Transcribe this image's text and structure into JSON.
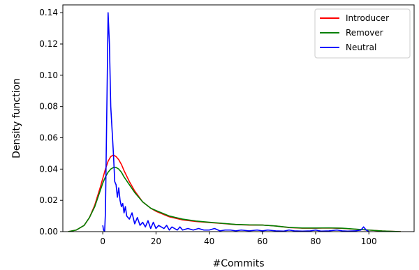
{
  "chart_data": {
    "type": "line",
    "title": "",
    "xlabel": "#Commits",
    "ylabel": "Density function",
    "xlim": [
      -15,
      117
    ],
    "ylim": [
      0,
      0.145
    ],
    "grid": false,
    "legend_position": "top-right",
    "x_ticks": [
      0,
      20,
      40,
      60,
      80,
      100
    ],
    "x_tick_labels": [
      "0",
      "20",
      "40",
      "60",
      "80",
      "100"
    ],
    "y_ticks": [
      0,
      0.02,
      0.04,
      0.06,
      0.08,
      0.1,
      0.12,
      0.14
    ],
    "y_tick_labels": [
      "0.00",
      "0.02",
      "0.04",
      "0.06",
      "0.08",
      "0.10",
      "0.12",
      "0.14"
    ],
    "series": [
      {
        "name": "Introducer",
        "color": "#ff0000",
        "x": [
          -13,
          -10,
          -7,
          -5,
          -3,
          -1,
          0,
          1,
          2,
          3,
          4,
          5,
          6,
          7,
          8,
          10,
          12,
          15,
          18,
          20,
          25,
          30,
          35,
          40,
          45,
          50,
          55,
          60,
          65,
          70,
          75,
          80,
          85,
          90,
          95,
          100,
          105,
          112
        ],
        "y": [
          0.0,
          0.001,
          0.004,
          0.009,
          0.017,
          0.028,
          0.034,
          0.04,
          0.045,
          0.048,
          0.049,
          0.048,
          0.046,
          0.043,
          0.039,
          0.032,
          0.026,
          0.019,
          0.015,
          0.013,
          0.0095,
          0.0075,
          0.0065,
          0.0058,
          0.0052,
          0.0045,
          0.0042,
          0.0042,
          0.0036,
          0.0026,
          0.0022,
          0.0022,
          0.0023,
          0.0021,
          0.0015,
          0.001,
          0.0004,
          0.0
        ]
      },
      {
        "name": "Remover",
        "color": "#008000",
        "x": [
          -13,
          -10,
          -7,
          -5,
          -3,
          -1,
          0,
          1,
          2,
          3,
          4,
          5,
          6,
          7,
          8,
          10,
          12,
          15,
          18,
          20,
          25,
          30,
          35,
          40,
          45,
          50,
          55,
          60,
          65,
          70,
          75,
          80,
          85,
          90,
          95,
          100,
          105,
          112
        ],
        "y": [
          0.0,
          0.001,
          0.004,
          0.009,
          0.016,
          0.026,
          0.031,
          0.035,
          0.038,
          0.04,
          0.041,
          0.041,
          0.04,
          0.038,
          0.035,
          0.03,
          0.025,
          0.019,
          0.015,
          0.0135,
          0.01,
          0.008,
          0.0068,
          0.006,
          0.0053,
          0.0046,
          0.0043,
          0.0042,
          0.0036,
          0.0027,
          0.0023,
          0.0023,
          0.0024,
          0.0022,
          0.0016,
          0.001,
          0.0004,
          0.0
        ]
      },
      {
        "name": "Neutral",
        "color": "#0000ff",
        "x": [
          0,
          0.3,
          0.7,
          1,
          1.3,
          1.7,
          2,
          2.5,
          3,
          3.5,
          4,
          4.5,
          5,
          5.5,
          6,
          6.5,
          7,
          7.5,
          8,
          8.5,
          9,
          10,
          11,
          12,
          13,
          14,
          15,
          16,
          17,
          18,
          19,
          20,
          21,
          22,
          23,
          24,
          25,
          26,
          27,
          28,
          29,
          30,
          32,
          34,
          36,
          38,
          40,
          42,
          44,
          46,
          48,
          50,
          52,
          55,
          58,
          60,
          62,
          65,
          68,
          70,
          72,
          75,
          78,
          80,
          82,
          85,
          88,
          90,
          92,
          95,
          97,
          98,
          99,
          100
        ],
        "y": [
          0.004,
          0.001,
          0.0,
          0.012,
          0.05,
          0.1,
          0.14,
          0.12,
          0.08,
          0.065,
          0.05,
          0.032,
          0.03,
          0.022,
          0.028,
          0.02,
          0.016,
          0.018,
          0.012,
          0.016,
          0.01,
          0.008,
          0.012,
          0.005,
          0.009,
          0.004,
          0.006,
          0.003,
          0.007,
          0.002,
          0.006,
          0.002,
          0.004,
          0.003,
          0.002,
          0.004,
          0.001,
          0.003,
          0.002,
          0.001,
          0.003,
          0.001,
          0.002,
          0.001,
          0.002,
          0.001,
          0.001,
          0.002,
          0.0005,
          0.001,
          0.001,
          0.0005,
          0.001,
          0.0005,
          0.001,
          0.0005,
          0.001,
          0.0005,
          0.0003,
          0.001,
          0.0005,
          0.0003,
          0.0005,
          0.001,
          0.0003,
          0.0005,
          0.001,
          0.0005,
          0.0003,
          0.0005,
          0.001,
          0.003,
          0.001,
          0.0
        ]
      }
    ]
  }
}
